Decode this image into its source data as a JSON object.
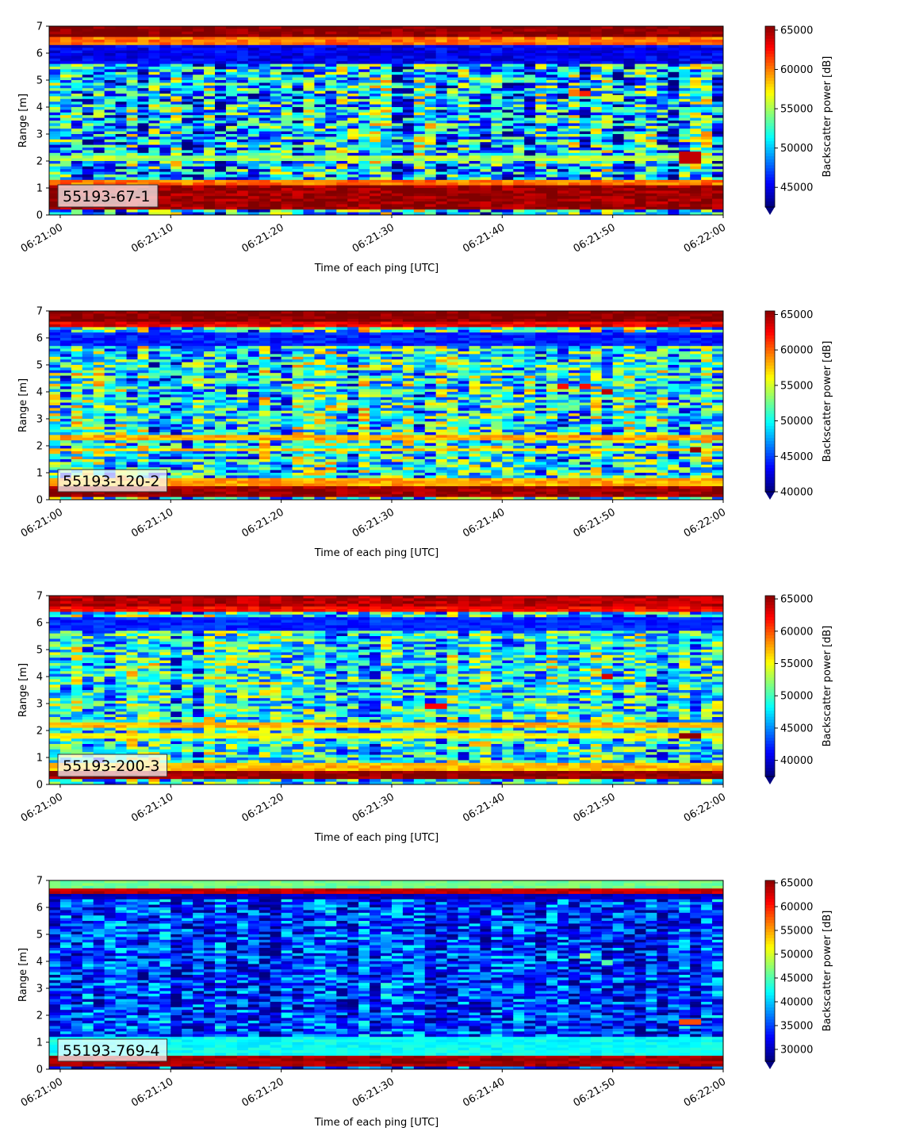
{
  "chart_data": [
    {
      "type": "heatmap",
      "label": "55193-67-1",
      "xlabel": "Time of each ping [UTC]",
      "ylabel": "Range [m]",
      "colorbar_label": "Backscatter power [dB]",
      "colormap": "jet",
      "x_ticks": [
        "06:21:00",
        "06:21:10",
        "06:21:20",
        "06:21:30",
        "06:21:40",
        "06:21:50",
        "06:22:00"
      ],
      "xlim": [
        "06:20:59",
        "06:22:00"
      ],
      "y_ticks": [
        0,
        1,
        2,
        3,
        4,
        5,
        6,
        7
      ],
      "ylim": [
        0,
        7
      ],
      "colorbar_ticks": [
        45000,
        50000,
        55000,
        60000,
        65000
      ],
      "vmin": 42500,
      "vmax": 65500,
      "background_level": 50000,
      "rows": [
        {
          "y": [
            0.25,
            1.15
          ],
          "value": 65000
        },
        {
          "y": [
            1.15,
            1.3
          ],
          "value": 60000
        },
        {
          "y": [
            2.0,
            2.2
          ],
          "value": 55000
        },
        {
          "y": [
            5.6,
            6.3
          ],
          "value": 45000
        },
        {
          "y": [
            6.3,
            6.6
          ],
          "value": 60000
        },
        {
          "y": [
            6.6,
            7.0
          ],
          "value": 65500
        }
      ],
      "spots": [
        {
          "x": [
            "06:21:46",
            "06:21:47"
          ],
          "y": [
            4.4,
            4.65
          ],
          "value": 60000
        },
        {
          "x": [
            "06:21:47",
            "06:21:48"
          ],
          "y": [
            4.4,
            4.6
          ],
          "value": 62000
        },
        {
          "x": [
            "06:21:49",
            "06:21:51"
          ],
          "y": [
            4.2,
            4.45
          ],
          "value": 56000
        },
        {
          "x": [
            "06:21:56",
            "06:21:58"
          ],
          "y": [
            1.9,
            2.35
          ],
          "value": 64000
        }
      ]
    },
    {
      "type": "heatmap",
      "label": "55193-120-2",
      "xlabel": "Time of each ping [UTC]",
      "ylabel": "Range [m]",
      "colorbar_label": "Backscatter power [dB]",
      "colormap": "jet",
      "x_ticks": [
        "06:21:00",
        "06:21:10",
        "06:21:20",
        "06:21:30",
        "06:21:40",
        "06:21:50",
        "06:22:00"
      ],
      "xlim": [
        "06:20:59",
        "06:22:00"
      ],
      "y_ticks": [
        0,
        1,
        2,
        3,
        4,
        5,
        6,
        7
      ],
      "ylim": [
        0,
        7
      ],
      "colorbar_ticks": [
        40000,
        45000,
        50000,
        55000,
        60000,
        65000
      ],
      "vmin": 40000,
      "vmax": 65500,
      "background_level": 50000,
      "rows": [
        {
          "y": [
            0.1,
            0.5
          ],
          "value": 65000
        },
        {
          "y": [
            0.5,
            0.8
          ],
          "value": 58000
        },
        {
          "y": [
            1.8,
            1.95
          ],
          "value": 57000
        },
        {
          "y": [
            2.2,
            2.35
          ],
          "value": 58000
        },
        {
          "y": [
            5.7,
            6.2
          ],
          "value": 44000
        },
        {
          "y": [
            6.4,
            6.6
          ],
          "value": 63000
        },
        {
          "y": [
            6.6,
            7.0
          ],
          "value": 65500
        }
      ],
      "spots": [
        {
          "x": [
            "06:21:45",
            "06:21:46"
          ],
          "y": [
            4.1,
            4.3
          ],
          "value": 62000
        },
        {
          "x": [
            "06:21:47",
            "06:21:48"
          ],
          "y": [
            4.1,
            4.3
          ],
          "value": 62000
        },
        {
          "x": [
            "06:21:49",
            "06:21:50"
          ],
          "y": [
            3.9,
            4.1
          ],
          "value": 64000
        },
        {
          "x": [
            "06:21:57",
            "06:21:58"
          ],
          "y": [
            1.75,
            1.95
          ],
          "value": 65000
        }
      ]
    },
    {
      "type": "heatmap",
      "label": "55193-200-3",
      "xlabel": "Time of each ping [UTC]",
      "ylabel": "Range [m]",
      "colorbar_label": "Backscatter power [dB]",
      "colormap": "jet",
      "x_ticks": [
        "06:21:00",
        "06:21:10",
        "06:21:20",
        "06:21:30",
        "06:21:40",
        "06:21:50",
        "06:22:00"
      ],
      "xlim": [
        "06:20:59",
        "06:22:00"
      ],
      "y_ticks": [
        0,
        1,
        2,
        3,
        4,
        5,
        6,
        7
      ],
      "ylim": [
        0,
        7
      ],
      "colorbar_ticks": [
        40000,
        45000,
        50000,
        55000,
        60000,
        65000
      ],
      "vmin": 37500,
      "vmax": 65500,
      "background_level": 48000,
      "rows": [
        {
          "y": [
            0.2,
            0.5
          ],
          "value": 65000
        },
        {
          "y": [
            0.5,
            0.8
          ],
          "value": 57000
        },
        {
          "y": [
            1.75,
            1.9
          ],
          "value": 55000
        },
        {
          "y": [
            2.1,
            2.25
          ],
          "value": 57000
        },
        {
          "y": [
            5.7,
            6.2
          ],
          "value": 42000
        },
        {
          "y": [
            6.4,
            6.6
          ],
          "value": 62000
        },
        {
          "y": [
            6.6,
            7.0
          ],
          "value": 64000
        }
      ],
      "spots": [
        {
          "x": [
            "06:21:33",
            "06:21:35"
          ],
          "y": [
            2.8,
            3.0
          ],
          "value": 62000
        },
        {
          "x": [
            "06:21:49",
            "06:21:50"
          ],
          "y": [
            3.9,
            4.1
          ],
          "value": 63000
        },
        {
          "x": [
            "06:21:56",
            "06:21:58"
          ],
          "y": [
            1.7,
            1.9
          ],
          "value": 65000
        }
      ]
    },
    {
      "type": "heatmap",
      "label": "55193-769-4",
      "xlabel": "Time of each ping [UTC]",
      "ylabel": "Range [m]",
      "colorbar_label": "Backscatter power [dB]",
      "colormap": "jet",
      "x_ticks": [
        "06:21:00",
        "06:21:10",
        "06:21:20",
        "06:21:30",
        "06:21:40",
        "06:21:50",
        "06:22:00"
      ],
      "xlim": [
        "06:20:59",
        "06:22:00"
      ],
      "y_ticks": [
        0,
        1,
        2,
        3,
        4,
        5,
        6,
        7
      ],
      "ylim": [
        0,
        7
      ],
      "colorbar_ticks": [
        30000,
        35000,
        40000,
        45000,
        50000,
        55000,
        60000,
        65000
      ],
      "vmin": 27500,
      "vmax": 65500,
      "background_level": 34000,
      "rows": [
        {
          "y": [
            0.1,
            0.5
          ],
          "value": 64000
        },
        {
          "y": [
            0.5,
            1.2
          ],
          "value": 42000
        },
        {
          "y": [
            6.3,
            6.5
          ],
          "value": 30000
        },
        {
          "y": [
            6.5,
            6.7
          ],
          "value": 63000
        },
        {
          "y": [
            6.7,
            7.0
          ],
          "value": 46000
        }
      ],
      "spots": [
        {
          "x": [
            "06:21:47",
            "06:21:48"
          ],
          "y": [
            4.1,
            4.3
          ],
          "value": 48000
        },
        {
          "x": [
            "06:21:49",
            "06:21:50"
          ],
          "y": [
            3.85,
            4.05
          ],
          "value": 45000
        },
        {
          "x": [
            "06:21:56",
            "06:21:58"
          ],
          "y": [
            1.65,
            1.85
          ],
          "value": 58000
        }
      ]
    }
  ]
}
